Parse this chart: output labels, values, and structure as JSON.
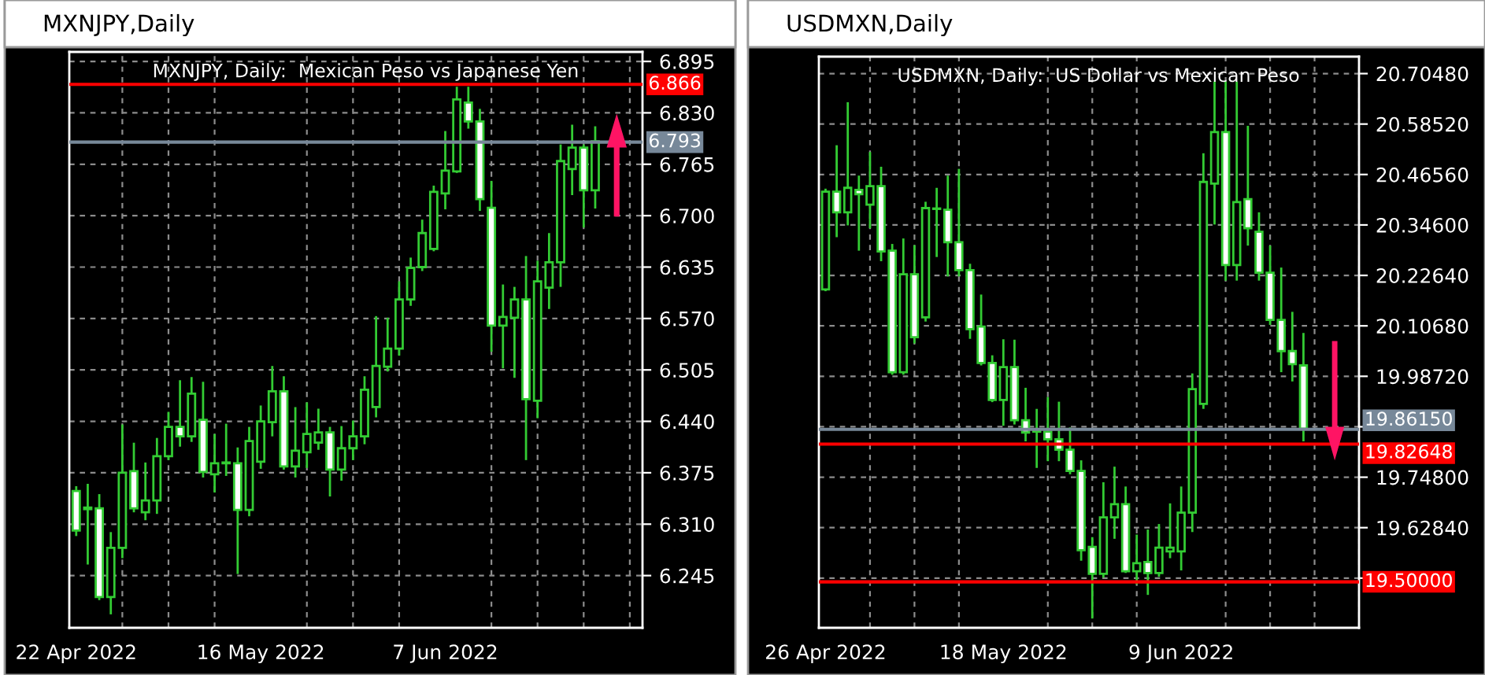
{
  "chart_data": [
    {
      "type": "candlestick",
      "title": "MXNJPY,Daily",
      "subtitle": "MXNJPY, Daily:  Mexican Peso vs Japanese Yen",
      "color": "#33cc33",
      "grid": true,
      "categories": [
        "22 Apr 2022",
        null,
        null,
        null,
        null,
        null,
        null,
        null,
        null,
        null,
        null,
        null,
        null,
        null,
        null,
        null,
        "16 May 2022",
        null,
        null,
        null,
        null,
        null,
        null,
        null,
        null,
        null,
        null,
        null,
        null,
        null,
        null,
        null,
        "7 Jun 2022",
        null,
        null,
        null,
        null,
        null,
        null,
        null,
        null,
        null,
        null,
        null,
        null,
        null
      ],
      "ohlc": [
        [
          6.352,
          6.358,
          6.295,
          6.302
        ],
        [
          6.329,
          6.361,
          6.259,
          6.331
        ],
        [
          6.33,
          6.348,
          6.214,
          6.218
        ],
        [
          6.218,
          6.3,
          6.196,
          6.28
        ],
        [
          6.28,
          6.436,
          6.267,
          6.375
        ],
        [
          6.377,
          6.413,
          6.325,
          6.33
        ],
        [
          6.325,
          6.388,
          6.315,
          6.34
        ],
        [
          6.34,
          6.419,
          6.323,
          6.396
        ],
        [
          6.396,
          6.452,
          6.391,
          6.433
        ],
        [
          6.433,
          6.492,
          6.408,
          6.421
        ],
        [
          6.421,
          6.496,
          6.414,
          6.475
        ],
        [
          6.442,
          6.49,
          6.369,
          6.376
        ],
        [
          6.373,
          6.424,
          6.35,
          6.387
        ],
        [
          6.387,
          6.437,
          6.371,
          6.388
        ],
        [
          6.387,
          6.407,
          6.247,
          6.328
        ],
        [
          6.328,
          6.433,
          6.32,
          6.415
        ],
        [
          6.389,
          6.46,
          6.38,
          6.44
        ],
        [
          6.439,
          6.51,
          6.421,
          6.478
        ],
        [
          6.478,
          6.497,
          6.379,
          6.383
        ],
        [
          6.383,
          6.458,
          6.369,
          6.403
        ],
        [
          6.401,
          6.464,
          6.381,
          6.424
        ],
        [
          6.413,
          6.456,
          6.404,
          6.426
        ],
        [
          6.426,
          6.433,
          6.345,
          6.379
        ],
        [
          6.379,
          6.434,
          6.365,
          6.406
        ],
        [
          6.406,
          6.441,
          6.391,
          6.421
        ],
        [
          6.421,
          6.497,
          6.411,
          6.48
        ],
        [
          6.458,
          6.573,
          6.445,
          6.51
        ],
        [
          6.509,
          6.571,
          6.503,
          6.532
        ],
        [
          6.532,
          6.617,
          6.523,
          6.594
        ],
        [
          6.594,
          6.647,
          6.586,
          6.634
        ],
        [
          6.635,
          6.695,
          6.63,
          6.678
        ],
        [
          6.658,
          6.738,
          6.655,
          6.73
        ],
        [
          6.728,
          6.807,
          6.708,
          6.757
        ],
        [
          6.756,
          6.863,
          6.754,
          6.847
        ],
        [
          6.843,
          6.863,
          6.81,
          6.819
        ],
        [
          6.819,
          6.835,
          6.706,
          6.721
        ],
        [
          6.71,
          6.744,
          6.528,
          6.561
        ],
        [
          6.561,
          6.613,
          6.507,
          6.572
        ],
        [
          6.571,
          6.61,
          6.495,
          6.594
        ],
        [
          6.594,
          6.649,
          6.391,
          6.468
        ],
        [
          6.466,
          6.643,
          6.444,
          6.617
        ],
        [
          6.609,
          6.678,
          6.582,
          6.641
        ],
        [
          6.641,
          6.79,
          6.61,
          6.769
        ],
        [
          6.759,
          6.815,
          6.726,
          6.786
        ],
        [
          6.786,
          6.79,
          6.685,
          6.732
        ],
        [
          6.732,
          6.813,
          6.709,
          6.794
        ]
      ],
      "ylim": [
        6.179,
        6.907
      ],
      "yticks": [
        {
          "value": 6.245,
          "label": "6.245"
        },
        {
          "value": 6.31,
          "label": "6.310"
        },
        {
          "value": 6.375,
          "label": "6.375"
        },
        {
          "value": 6.44,
          "label": "6.440"
        },
        {
          "value": 6.505,
          "label": "6.505"
        },
        {
          "value": 6.57,
          "label": "6.570"
        },
        {
          "value": 6.635,
          "label": "6.635"
        },
        {
          "value": 6.7,
          "label": "6.700"
        },
        {
          "value": 6.765,
          "label": "6.765"
        },
        {
          "value": 6.83,
          "label": "6.830"
        },
        {
          "value": 6.895,
          "label": "6.895"
        }
      ],
      "ref_lines": [
        {
          "axis": "y",
          "value": 6.866,
          "label": "6.866",
          "color": "#ff0000"
        },
        {
          "axis": "y",
          "value": 6.793,
          "label": "6.793",
          "color": "#778899"
        }
      ]
    },
    {
      "type": "candlestick",
      "title": "USDMXN,Daily",
      "subtitle": "USDMXN, Daily:  US Dollar vs Mexican Peso",
      "color": "#33cc33",
      "grid": true,
      "categories": [
        "26 Apr 2022",
        null,
        null,
        null,
        null,
        null,
        null,
        null,
        null,
        null,
        null,
        null,
        null,
        null,
        null,
        null,
        "18 May 2022",
        null,
        null,
        null,
        null,
        null,
        null,
        null,
        null,
        null,
        null,
        null,
        null,
        null,
        null,
        null,
        "9 Jun 2022",
        null,
        null,
        null,
        null,
        null,
        null,
        null,
        null,
        null,
        null,
        null
      ],
      "ohlc": [
        [
          20.193,
          20.432,
          20.189,
          20.425
        ],
        [
          20.425,
          20.535,
          20.317,
          20.376
        ],
        [
          20.376,
          20.637,
          20.345,
          20.434
        ],
        [
          20.429,
          20.463,
          20.285,
          20.419
        ],
        [
          20.394,
          20.519,
          20.338,
          20.438
        ],
        [
          20.438,
          20.484,
          20.26,
          20.283
        ],
        [
          20.285,
          20.301,
          19.991,
          19.997
        ],
        [
          19.997,
          20.314,
          19.991,
          20.229
        ],
        [
          20.229,
          20.298,
          20.065,
          20.08
        ],
        [
          20.127,
          20.401,
          20.117,
          20.386
        ],
        [
          20.385,
          20.434,
          20.27,
          20.384
        ],
        [
          20.382,
          20.463,
          20.224,
          20.305
        ],
        [
          20.305,
          20.479,
          20.224,
          20.239
        ],
        [
          20.239,
          20.254,
          20.076,
          20.099
        ],
        [
          20.105,
          20.181,
          20.013,
          20.019
        ],
        [
          20.019,
          20.037,
          19.926,
          19.931
        ],
        [
          19.931,
          20.075,
          19.87,
          20.009
        ],
        [
          20.009,
          20.074,
          19.873,
          19.883
        ],
        [
          19.883,
          19.96,
          19.833,
          19.854
        ],
        [
          19.857,
          19.91,
          19.77,
          19.856
        ],
        [
          19.856,
          19.938,
          19.786,
          19.838
        ],
        [
          19.838,
          19.927,
          19.786,
          19.813
        ],
        [
          19.813,
          19.866,
          19.755,
          19.763
        ],
        [
          19.763,
          19.788,
          19.55,
          19.575
        ],
        [
          19.583,
          19.606,
          19.413,
          19.519
        ],
        [
          19.519,
          19.736,
          19.51,
          19.653
        ],
        [
          19.653,
          19.773,
          19.602,
          19.684
        ],
        [
          19.684,
          19.726,
          19.521,
          19.525
        ],
        [
          19.525,
          19.612,
          19.494,
          19.544
        ],
        [
          19.547,
          19.624,
          19.469,
          19.521
        ],
        [
          19.521,
          19.637,
          19.512,
          19.581
        ],
        [
          19.572,
          19.686,
          19.556,
          19.581
        ],
        [
          19.572,
          19.726,
          19.527,
          19.664
        ],
        [
          19.664,
          19.994,
          19.618,
          19.957
        ],
        [
          19.922,
          20.516,
          19.91,
          20.448
        ],
        [
          20.444,
          20.686,
          20.347,
          20.566
        ],
        [
          20.566,
          20.686,
          20.214,
          20.251
        ],
        [
          20.251,
          20.686,
          20.214,
          20.4
        ],
        [
          20.407,
          20.581,
          20.297,
          20.338
        ],
        [
          20.33,
          20.376,
          20.214,
          20.233
        ],
        [
          20.233,
          20.297,
          20.109,
          20.121
        ],
        [
          20.121,
          20.245,
          19.997,
          20.047
        ],
        [
          20.047,
          20.14,
          19.975,
          20.016
        ],
        [
          20.013,
          20.09,
          19.833,
          19.863
        ]
      ],
      "ylim": [
        19.391,
        20.745
      ],
      "yticks": [
        {
          "value": 19.5088,
          "label": null
        },
        {
          "value": 19.6284,
          "label": "19.62840"
        },
        {
          "value": 19.748,
          "label": "19.74800"
        },
        {
          "value": 19.8676,
          "label": null
        },
        {
          "value": 19.9872,
          "label": "19.98720"
        },
        {
          "value": 20.1068,
          "label": "20.10680"
        },
        {
          "value": 20.2264,
          "label": "20.22640"
        },
        {
          "value": 20.346,
          "label": "20.34600"
        },
        {
          "value": 20.4656,
          "label": "20.46560"
        },
        {
          "value": 20.5852,
          "label": "20.58520"
        },
        {
          "value": 20.7048,
          "label": "20.70480"
        }
      ],
      "ref_lines": [
        {
          "axis": "y",
          "value": 19.8615,
          "label": "19.86150",
          "color": "#778899"
        },
        {
          "axis": "y",
          "value": 19.82648,
          "label": "19.82648",
          "color": "#ff0000"
        },
        {
          "axis": "y",
          "value": 19.5,
          "label": "19.50000",
          "color": "#ff0000"
        }
      ]
    }
  ]
}
